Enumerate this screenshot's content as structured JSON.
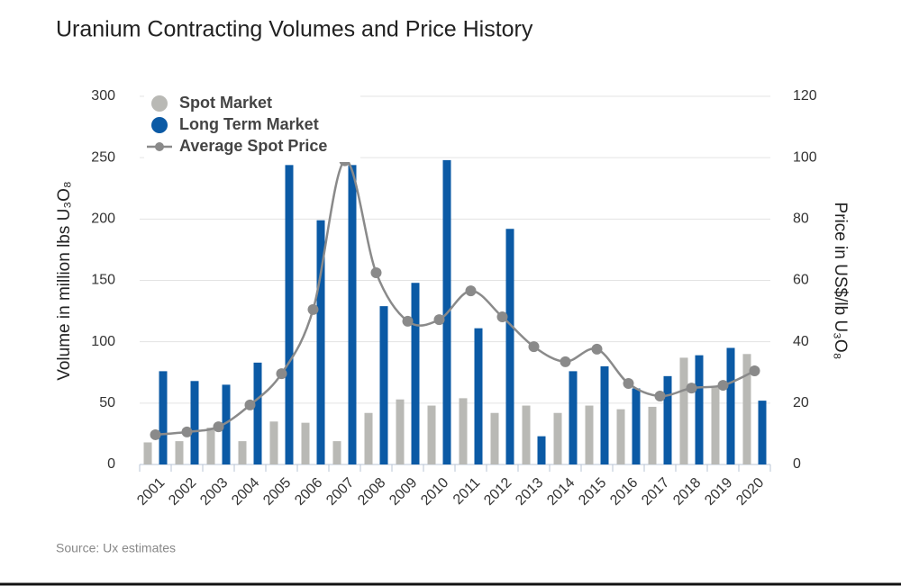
{
  "chart_data": {
    "type": "bar-line",
    "title": "Uranium Contracting Volumes and Price History",
    "source": "Source: Ux estimates",
    "y_label": "Volume in million lbs U₃O₈",
    "y2_label": "Price in US$/lb U₃O₈",
    "categories": [
      "2001",
      "2002",
      "2003",
      "2004",
      "2005",
      "2006",
      "2007",
      "2008",
      "2009",
      "2010",
      "2011",
      "2012",
      "2013",
      "2014",
      "2015",
      "2016",
      "2017",
      "2018",
      "2019",
      "2020"
    ],
    "series": [
      {
        "name": "Spot Market",
        "type": "bar",
        "color": "#b9b9b5",
        "values": [
          18,
          19,
          30,
          19,
          35,
          34,
          19,
          42,
          53,
          48,
          54,
          42,
          48,
          42,
          48,
          45,
          47,
          87,
          63,
          90
        ]
      },
      {
        "name": "Long Term Market",
        "type": "bar",
        "color": "#0b5aa5",
        "values": [
          76,
          68,
          65,
          83,
          244,
          199,
          244,
          129,
          148,
          248,
          111,
          192,
          23,
          76,
          80,
          62,
          72,
          89,
          95,
          52
        ]
      },
      {
        "name": "Average Spot Price",
        "type": "line",
        "axis": "y2",
        "color": "#8a8a8a",
        "values": [
          9.7,
          10.6,
          12.3,
          19.4,
          29.6,
          50.5,
          99,
          62.5,
          46.7,
          47.2,
          56.6,
          48.1,
          38.4,
          33.5,
          37.6,
          26.4,
          22.3,
          24.9,
          25.8,
          30.5
        ]
      }
    ],
    "ylim": [
      0,
      300
    ],
    "yticks": [
      0,
      50,
      100,
      150,
      200,
      250,
      300
    ],
    "y2lim": [
      0,
      120
    ],
    "y2ticks": [
      0,
      20,
      40,
      60,
      80,
      100,
      120
    ],
    "grid": true,
    "legend": "top-left"
  }
}
